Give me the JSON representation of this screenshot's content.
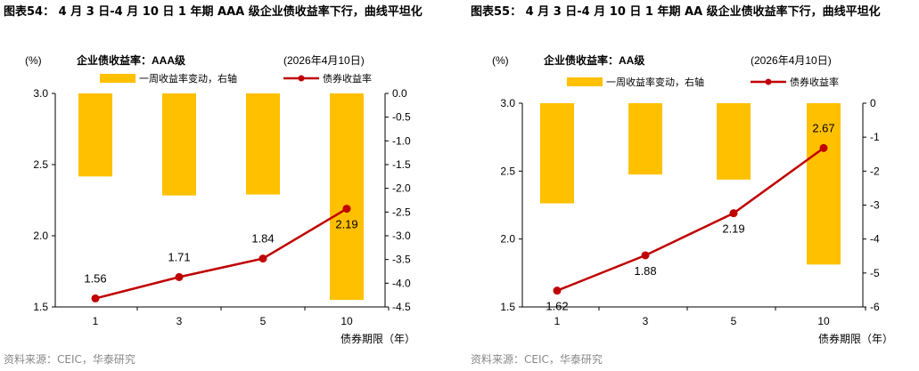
{
  "charts": [
    {
      "figure_title": "图表54： 4 月 3 日-4 月 10 日 1 年期 AAA 级企业债收益率下行，曲线平坦化",
      "source": "资料来源：CEIC，华泰研究",
      "chart_data": {
        "type": "bar+line",
        "inner_title": "企业债收益率：AAA级",
        "date_note": "(2026年4月10日)",
        "left_unit": "(%)",
        "xlabel": "债券期限（年）",
        "categories": [
          "1",
          "3",
          "5",
          "10"
        ],
        "series": [
          {
            "name": "一周收益率变动，右轴",
            "type": "bar",
            "axis": "right",
            "values": [
              -1.75,
              -2.15,
              -2.13,
              -4.35
            ]
          },
          {
            "name": "债券收益率",
            "type": "line",
            "axis": "left",
            "values": [
              1.56,
              1.71,
              1.84,
              2.19
            ],
            "labels": [
              "1.56",
              "1.71",
              "1.84",
              "2.19"
            ]
          }
        ],
        "left_axis": {
          "min": 1.5,
          "max": 3.0,
          "ticks": [
            "1.5",
            "2.0",
            "2.5",
            "3.0"
          ]
        },
        "right_axis": {
          "min": -4.5,
          "max": 0,
          "ticks": [
            "-4.5",
            "-4.0",
            "-3.5",
            "-3.0",
            "-2.5",
            "-2.0",
            "-1.5",
            "-1.0",
            "-0.5",
            "0.0"
          ]
        },
        "colors": {
          "bar": "#FFC000",
          "line": "#C00000"
        }
      }
    },
    {
      "figure_title": "图表55： 4 月 3 日-4 月 10 日 1 年期 AA 级企业债收益率下行，曲线平坦化",
      "source": "资料来源：CEIC，华泰研究",
      "chart_data": {
        "type": "bar+line",
        "inner_title": "企业债收益率：AA级",
        "date_note": "(2026年4月10日)",
        "left_unit": "(%)",
        "xlabel": "债券期限（年）",
        "categories": [
          "1",
          "3",
          "5",
          "10"
        ],
        "series": [
          {
            "name": "一周收益率变动，右轴",
            "type": "bar",
            "axis": "right",
            "values": [
              -2.95,
              -2.1,
              -2.25,
              -4.75
            ]
          },
          {
            "name": "债券收益率",
            "type": "line",
            "axis": "left",
            "values": [
              1.62,
              1.88,
              2.19,
              2.67
            ],
            "labels": [
              "1.62",
              "1.88",
              "2.19",
              "2.67"
            ]
          }
        ],
        "left_axis": {
          "min": 1.5,
          "max": 3.0,
          "ticks": [
            "1.5",
            "2.0",
            "2.5",
            "3.0"
          ]
        },
        "right_axis": {
          "min": -6,
          "max": 0,
          "ticks": [
            "-6",
            "-5",
            "-4",
            "-3",
            "-2",
            "-1",
            "0"
          ]
        },
        "colors": {
          "bar": "#FFC000",
          "line": "#C00000"
        }
      }
    }
  ]
}
